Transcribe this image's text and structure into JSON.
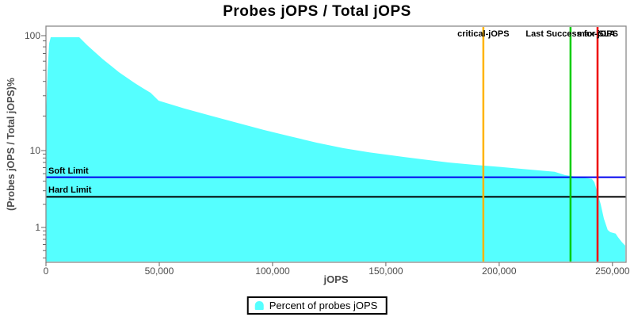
{
  "chart_data": {
    "type": "area",
    "title": "Probes jOPS / Total jOPS",
    "xlabel": "jOPS",
    "ylabel": "(Probes jOPS / Total jOPS)%",
    "x_axis": {
      "label": "jOPS",
      "min": 0,
      "max": 256000,
      "ticks": [
        {
          "value": 0,
          "label": "0"
        },
        {
          "value": 50000,
          "label": "50,000"
        },
        {
          "value": 100000,
          "label": "100,000"
        },
        {
          "value": 150000,
          "label": "150,000"
        },
        {
          "value": 200000,
          "label": "200,000"
        },
        {
          "value": 250000,
          "label": "250,000"
        }
      ]
    },
    "y_axis": {
      "label": "(Probes jOPS / Total jOPS)%",
      "scale": "log",
      "range_approx": [
        0.4,
        120
      ],
      "major_ticks": [
        {
          "value": 100,
          "label": "100"
        },
        {
          "value": 10,
          "label": "10"
        },
        {
          "value": 1,
          "label": "1"
        }
      ],
      "minor_ticks": [
        90,
        80,
        70,
        60,
        50,
        40,
        30,
        20,
        9,
        8,
        7,
        6,
        5,
        4,
        3,
        2,
        0.9,
        0.8,
        0.7,
        0.6,
        0.5,
        0.4
      ]
    },
    "series": [
      {
        "name": "Percent of probes jOPS",
        "color": "#55FFFF",
        "points": [
          [
            0,
            19.5
          ],
          [
            700,
            48.9
          ],
          [
            1400,
            85.3
          ],
          [
            2100,
            96.9
          ],
          [
            14700,
            96.9
          ],
          [
            18200,
            82.7
          ],
          [
            21700,
            71.6
          ],
          [
            25200,
            62.1
          ],
          [
            28700,
            54.7
          ],
          [
            32200,
            48.1
          ],
          [
            35700,
            43.1
          ],
          [
            39200,
            38.6
          ],
          [
            42700,
            35.0
          ],
          [
            46200,
            31.8
          ],
          [
            49700,
            27.2
          ],
          [
            61200,
            23.2
          ],
          [
            72700,
            20.1
          ],
          [
            84600,
            17.4
          ],
          [
            96200,
            15.1
          ],
          [
            107700,
            13.3
          ],
          [
            119600,
            11.7
          ],
          [
            131100,
            10.5
          ],
          [
            142700,
            9.5
          ],
          [
            154500,
            8.5
          ],
          [
            166100,
            7.7
          ],
          [
            177600,
            7.0
          ],
          [
            189500,
            6.5
          ],
          [
            201000,
            6.1
          ],
          [
            212600,
            5.7
          ],
          [
            224500,
            5.3
          ],
          [
            229000,
            4.8
          ],
          [
            233200,
            4.6
          ],
          [
            240900,
            4.3
          ],
          [
            242000,
            3.9
          ],
          [
            243400,
            2.8
          ],
          [
            244800,
            2.0
          ],
          [
            246200,
            1.3
          ],
          [
            247900,
            0.93
          ],
          [
            249000,
            0.87
          ],
          [
            251400,
            0.83
          ],
          [
            252400,
            0.75
          ],
          [
            254200,
            0.64
          ],
          [
            255600,
            0.58
          ]
        ]
      }
    ],
    "vlines": [
      {
        "label": "critical-jOPS",
        "x": 193000,
        "color": "#FFB400"
      },
      {
        "label": "Last Success for SLA",
        "x": 231500,
        "color": "#00CC00"
      },
      {
        "label": "max-jOPS",
        "x": 243400,
        "color": "#EE0000"
      }
    ],
    "hlines": [
      {
        "label": "Soft Limit",
        "y": 4.5,
        "color": "#0000EE"
      },
      {
        "label": "Hard Limit",
        "y": 2.5,
        "color": "#000000"
      }
    ],
    "legend_position": "bottom"
  },
  "legend": {
    "items": [
      {
        "label": "Percent of probes jOPS",
        "color": "#55FFFF"
      }
    ]
  }
}
